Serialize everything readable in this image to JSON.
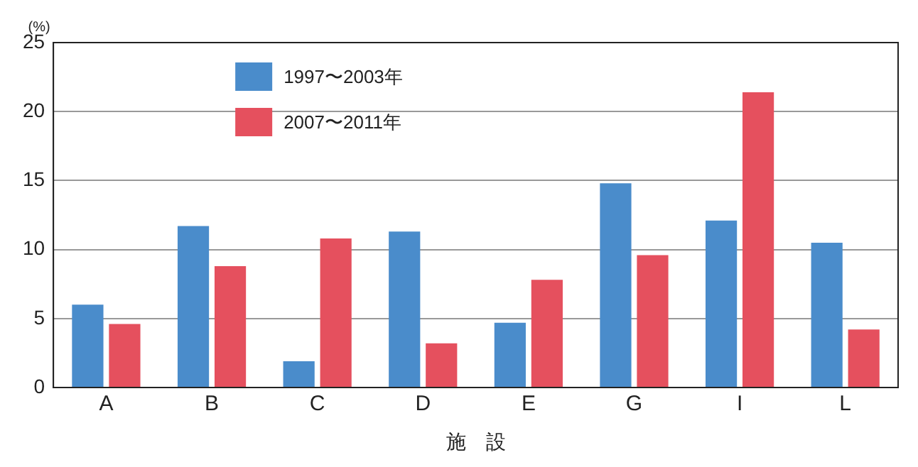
{
  "chart_data": {
    "type": "bar",
    "ylabel": "(%)",
    "xlabel": "施　設",
    "categories": [
      "A",
      "B",
      "C",
      "D",
      "E",
      "G",
      "I",
      "L"
    ],
    "series": [
      {
        "name": "1997〜2003年",
        "color": "#4a8ccb",
        "values": [
          6.0,
          11.7,
          1.9,
          11.3,
          4.7,
          14.8,
          12.1,
          10.5
        ]
      },
      {
        "name": "2007〜2011年",
        "color": "#e5505e",
        "values": [
          4.6,
          8.8,
          10.8,
          3.2,
          7.8,
          9.6,
          21.4,
          4.2
        ]
      }
    ],
    "ylim": [
      0,
      25
    ],
    "yticks": [
      0,
      5,
      10,
      15,
      20,
      25
    ],
    "grid": "y",
    "legend": "top left"
  }
}
